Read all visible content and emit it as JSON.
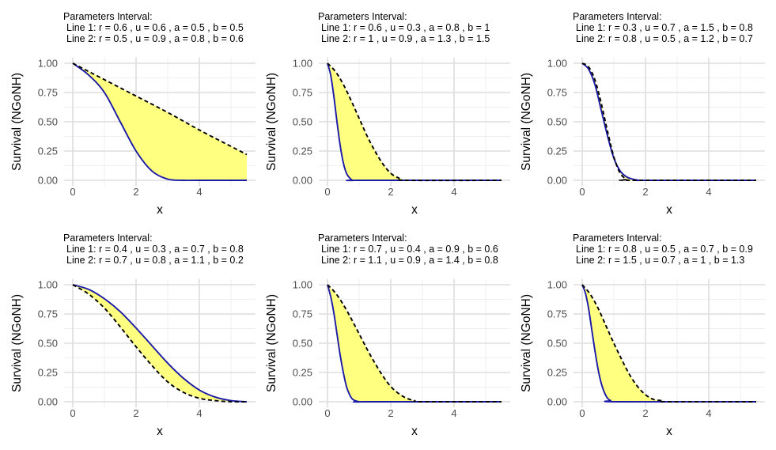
{
  "colors": {
    "background": "#ffffff",
    "grid_major": "#dedede",
    "grid_minor": "#efefef",
    "fill_between": "#ffff80",
    "line1": "#1a1aa6",
    "line2": "#000000"
  },
  "chart_data": [
    {
      "type": "line",
      "title": "Parameters Interval:",
      "subtitle": [
        "Line 1: r = 0.6 , u = 0.6 , a = 0.5 , b = 0.5",
        "Line 2: r = 0.5 , u = 0.9 , a = 0.8 , b = 0.6"
      ],
      "xlabel": "x",
      "ylabel": "Survival (NGoNH)",
      "xlim": [
        0,
        5.5
      ],
      "ylim": [
        0,
        1
      ],
      "xticks": [
        "0",
        "2",
        "4"
      ],
      "yticks": [
        "0.00",
        "0.25",
        "0.50",
        "0.75",
        "1.00"
      ],
      "grid": true,
      "fill_between_series": true,
      "series": [
        {
          "style": "solid",
          "color": "#1a1aa6",
          "x": [
            0,
            0.5,
            1,
            1.5,
            2,
            2.5,
            3,
            3.5,
            4,
            5.5
          ],
          "y": [
            1,
            0.9,
            0.75,
            0.5,
            0.25,
            0.08,
            0.01,
            0,
            0,
            0
          ]
        },
        {
          "style": "dashed",
          "color": "#000000",
          "x": [
            0,
            1,
            2,
            3,
            4,
            5,
            5.5
          ],
          "y": [
            1,
            0.86,
            0.72,
            0.58,
            0.43,
            0.29,
            0.22
          ]
        }
      ]
    },
    {
      "type": "line",
      "title": "Parameters Interval:",
      "subtitle": [
        "Line 1: r = 0.6 , u = 0.3 , a = 0.8 , b = 1",
        "Line 2: r = 1 , u = 0.9 , a = 1.3 , b = 1.5"
      ],
      "xlabel": "x",
      "ylabel": "Survival (NGoNH)",
      "xlim": [
        0,
        5.5
      ],
      "ylim": [
        0,
        1
      ],
      "xticks": [
        "0",
        "2",
        "4"
      ],
      "yticks": [
        "0.00",
        "0.25",
        "0.50",
        "0.75",
        "1.00"
      ],
      "grid": true,
      "fill_between_series": true,
      "series": [
        {
          "style": "solid",
          "color": "#1a1aa6",
          "x": [
            0,
            0.1,
            0.2,
            0.3,
            0.4,
            0.5,
            0.6,
            0.7,
            0.8,
            1,
            5.5
          ],
          "y": [
            1,
            0.9,
            0.72,
            0.5,
            0.3,
            0.15,
            0.06,
            0.02,
            0,
            0,
            0
          ]
        },
        {
          "style": "dashed",
          "color": "#000000",
          "x": [
            0,
            0.25,
            0.5,
            0.75,
            1,
            1.25,
            1.5,
            1.75,
            2,
            2.25,
            2.5,
            5.5
          ],
          "y": [
            1,
            0.93,
            0.82,
            0.68,
            0.53,
            0.38,
            0.25,
            0.14,
            0.06,
            0.02,
            0,
            0
          ]
        }
      ]
    },
    {
      "type": "line",
      "title": "Parameters Interval:",
      "subtitle": [
        "Line 1: r = 0.3 , u = 0.7 , a = 1.5 , b = 0.8",
        "Line 2: r = 0.8 , u = 0.5 , a = 1.2 , b = 0.7"
      ],
      "xlabel": "x",
      "ylabel": "Survival (NGoNH)",
      "xlim": [
        0,
        5.5
      ],
      "ylim": [
        0,
        1
      ],
      "xticks": [
        "0",
        "2",
        "4"
      ],
      "yticks": [
        "0.00",
        "0.25",
        "0.50",
        "0.75",
        "1.00"
      ],
      "grid": true,
      "fill_between_series": true,
      "series": [
        {
          "style": "solid",
          "color": "#1a1aa6",
          "x": [
            0,
            0.2,
            0.4,
            0.6,
            0.8,
            1,
            1.2,
            1.4,
            1.6,
            1.8,
            2,
            5.5
          ],
          "y": [
            1,
            0.95,
            0.82,
            0.6,
            0.38,
            0.19,
            0.08,
            0.03,
            0.01,
            0,
            0,
            0
          ]
        },
        {
          "style": "dashed",
          "color": "#000000",
          "x": [
            0,
            0.2,
            0.4,
            0.6,
            0.8,
            1,
            1.2,
            1.4,
            1.5,
            5.5
          ],
          "y": [
            1,
            0.97,
            0.86,
            0.66,
            0.42,
            0.2,
            0.06,
            0.01,
            0,
            0
          ]
        }
      ]
    },
    {
      "type": "line",
      "title": "Parameters Interval:",
      "subtitle": [
        "Line 1: r = 0.4 , u = 0.3 , a = 0.7 , b = 0.8",
        "Line 2: r = 0.7 , u = 0.8 , a = 1.1 , b = 0.2"
      ],
      "xlabel": "x",
      "ylabel": "Survival (NGoNH)",
      "xlim": [
        0,
        5.5
      ],
      "ylim": [
        0,
        1
      ],
      "xticks": [
        "0",
        "2",
        "4"
      ],
      "yticks": [
        "0.00",
        "0.25",
        "0.50",
        "0.75",
        "1.00"
      ],
      "grid": true,
      "fill_between_series": true,
      "series": [
        {
          "style": "solid",
          "color": "#1a1aa6",
          "x": [
            0,
            0.5,
            1,
            1.5,
            2,
            2.5,
            3,
            3.5,
            4,
            4.5,
            5,
            5.5
          ],
          "y": [
            1,
            0.96,
            0.88,
            0.77,
            0.63,
            0.48,
            0.33,
            0.2,
            0.1,
            0.04,
            0.01,
            0
          ]
        },
        {
          "style": "dashed",
          "color": "#000000",
          "x": [
            0,
            0.5,
            1,
            1.5,
            2,
            2.5,
            3,
            3.5,
            4,
            4.5,
            5,
            5.5
          ],
          "y": [
            1,
            0.92,
            0.8,
            0.64,
            0.47,
            0.31,
            0.17,
            0.08,
            0.03,
            0.01,
            0,
            0
          ]
        }
      ]
    },
    {
      "type": "line",
      "title": "Parameters Interval:",
      "subtitle": [
        "Line 1: r = 0.7 , u = 0.4 , a = 0.9 , b = 0.6",
        "Line 2: r = 1.1 , u = 0.9 , a = 1.4 , b = 0.8"
      ],
      "xlabel": "x",
      "ylabel": "Survival (NGoNH)",
      "xlim": [
        0,
        5.5
      ],
      "ylim": [
        0,
        1
      ],
      "xticks": [
        "0",
        "2",
        "4"
      ],
      "yticks": [
        "0.00",
        "0.25",
        "0.50",
        "0.75",
        "1.00"
      ],
      "grid": true,
      "fill_between_series": true,
      "series": [
        {
          "style": "solid",
          "color": "#1a1aa6",
          "x": [
            0,
            0.1,
            0.2,
            0.3,
            0.4,
            0.5,
            0.6,
            0.7,
            0.8,
            1,
            1.2,
            5.5
          ],
          "y": [
            1,
            0.9,
            0.76,
            0.58,
            0.4,
            0.25,
            0.13,
            0.06,
            0.02,
            0,
            0,
            0
          ]
        },
        {
          "style": "dashed",
          "color": "#000000",
          "x": [
            0,
            0.25,
            0.5,
            0.75,
            1,
            1.25,
            1.5,
            1.75,
            2,
            2.25,
            2.5,
            2.75,
            3,
            5.5
          ],
          "y": [
            1,
            0.93,
            0.83,
            0.71,
            0.58,
            0.45,
            0.33,
            0.22,
            0.13,
            0.07,
            0.03,
            0.01,
            0,
            0
          ]
        }
      ]
    },
    {
      "type": "line",
      "title": "Parameters Interval:",
      "subtitle": [
        "Line 1: r = 0.8 , u = 0.5 , a = 0.7 , b = 0.9",
        "Line 2: r = 1.5 , u = 0.7 , a = 1 , b = 1.3"
      ],
      "xlabel": "x",
      "ylabel": "Survival (NGoNH)",
      "xlim": [
        0,
        5.5
      ],
      "ylim": [
        0,
        1
      ],
      "xticks": [
        "0",
        "2",
        "4"
      ],
      "yticks": [
        "0.00",
        "0.25",
        "0.50",
        "0.75",
        "1.00"
      ],
      "grid": true,
      "fill_between_series": true,
      "series": [
        {
          "style": "solid",
          "color": "#1a1aa6",
          "x": [
            0,
            0.1,
            0.2,
            0.3,
            0.4,
            0.5,
            0.6,
            0.7,
            0.8,
            0.9,
            1.1,
            5.5
          ],
          "y": [
            1,
            0.93,
            0.8,
            0.62,
            0.44,
            0.28,
            0.16,
            0.08,
            0.03,
            0.01,
            0,
            0
          ]
        },
        {
          "style": "dashed",
          "color": "#000000",
          "x": [
            0,
            0.25,
            0.5,
            0.75,
            1,
            1.25,
            1.5,
            1.75,
            2,
            2.25,
            2.5,
            2.75,
            5.5
          ],
          "y": [
            1,
            0.92,
            0.8,
            0.65,
            0.5,
            0.36,
            0.23,
            0.13,
            0.06,
            0.02,
            0.01,
            0,
            0
          ]
        }
      ]
    }
  ]
}
